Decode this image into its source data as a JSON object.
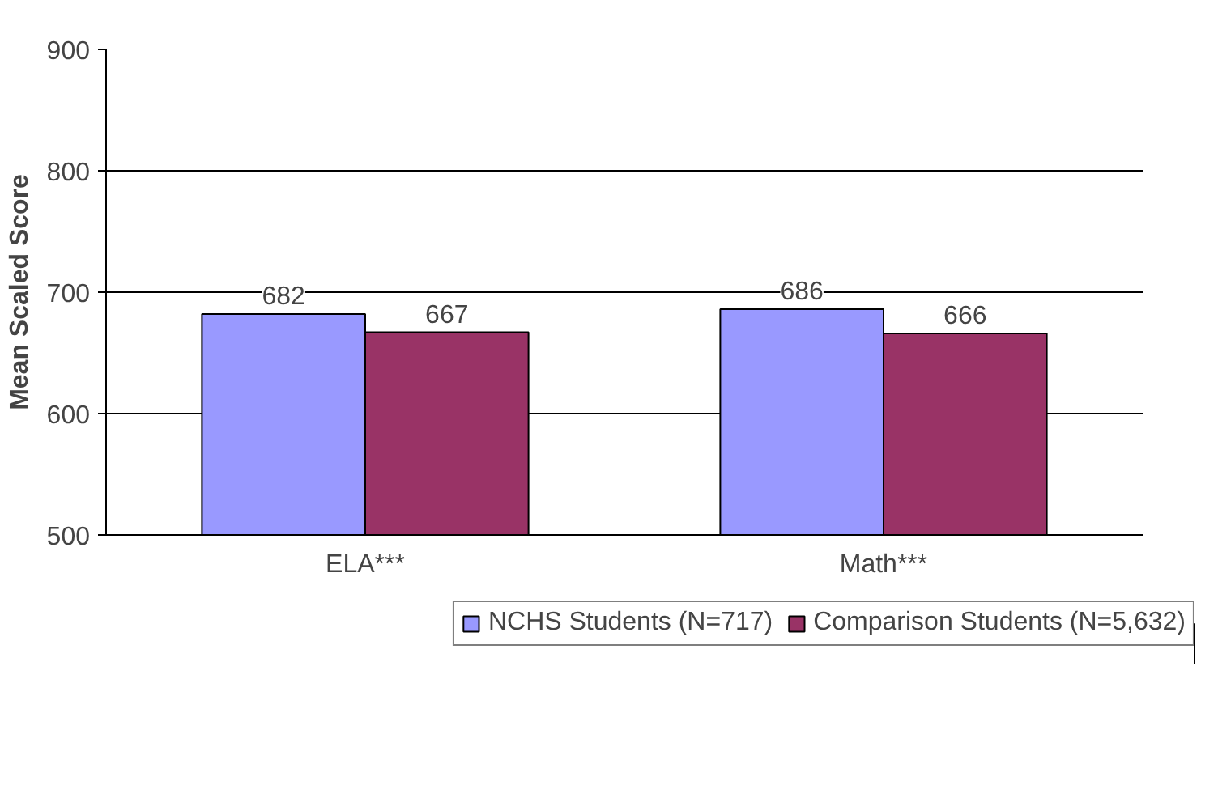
{
  "chart_data": {
    "type": "bar",
    "ylabel": "Mean Scaled Score",
    "categories": [
      "ELA***",
      "Math***"
    ],
    "series": [
      {
        "name": "NCHS Students (N=717)",
        "color": "#9999ff",
        "values": [
          682,
          686
        ]
      },
      {
        "name": "Comparison Students (N=5,632)",
        "color": "#993366",
        "values": [
          667,
          666
        ]
      }
    ],
    "ylim": [
      500,
      900
    ],
    "yticks": [
      500,
      600,
      700,
      800,
      900
    ],
    "grid": "y",
    "data_labels": true,
    "legend": "bottom"
  }
}
